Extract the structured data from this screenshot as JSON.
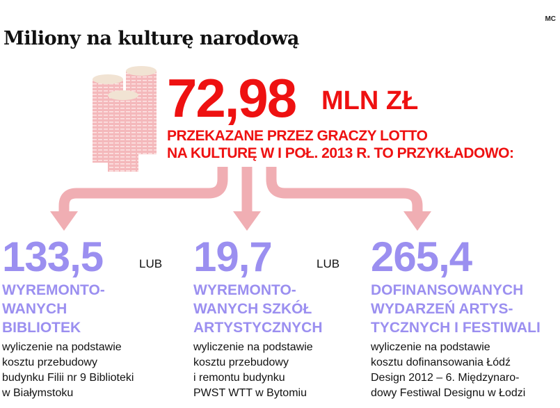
{
  "credit": "MC",
  "title": "Miliony na kulturę narodową",
  "amount": "72,98",
  "unit": "MLN ZŁ",
  "subtitle": [
    "PRZEKAZANE PRZEZ GRACZY LOTTO",
    "NA KULTURĘ W I POŁ. 2013 R. TO PRZYKŁADOWO:"
  ],
  "separator": "LUB",
  "colors": {
    "red": "#ee1111",
    "purple": "#9b8ff0",
    "arrow": "#f0aeb3"
  },
  "items": [
    {
      "value": "133,5",
      "heading": [
        "WYREMONTO-",
        "WANYCH",
        "BIBLIOTEK"
      ],
      "description": [
        "wyliczenie na podstawie",
        "kosztu przebudowy",
        "budynku Filii nr 9 Biblioteki",
        "w Białymstoku"
      ]
    },
    {
      "value": "19,7",
      "heading": [
        "WYREMONTO-",
        "WANYCH SZKÓŁ",
        "ARTYSTYCZNYCH"
      ],
      "description": [
        "wyliczenie na podstawie",
        "kosztu przebudowy",
        "i remontu budynku",
        "PWST WTT w Bytomiu"
      ]
    },
    {
      "value": "265,4",
      "heading": [
        "DOFINANSOWANYCH",
        "WYDARZEŃ ARTYS-",
        "TYCZNYCH I FESTIWALI"
      ],
      "description": [
        "wyliczenie na podstawie",
        "kosztu dofinansowania Łódź",
        "Design 2012 – 6. Międzynaro-",
        "dowy Festiwal Designu w Łodzi"
      ]
    }
  ]
}
